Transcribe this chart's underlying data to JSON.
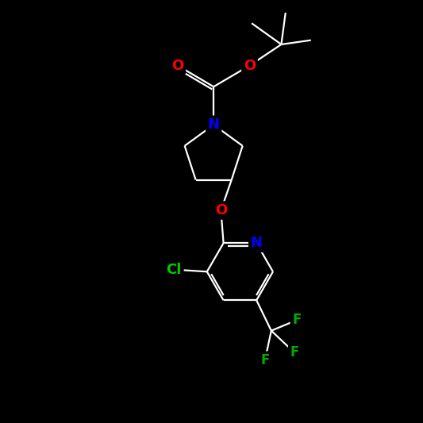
{
  "bg_color": "#000000",
  "bond_color": "#ffffff",
  "atom_colors": {
    "N": "#0000ff",
    "O": "#ff0000",
    "Cl": "#00cc00",
    "F": "#00aa00",
    "C": "#ffffff"
  },
  "fig_size": [
    5.33,
    5.33
  ],
  "dpi": 100
}
